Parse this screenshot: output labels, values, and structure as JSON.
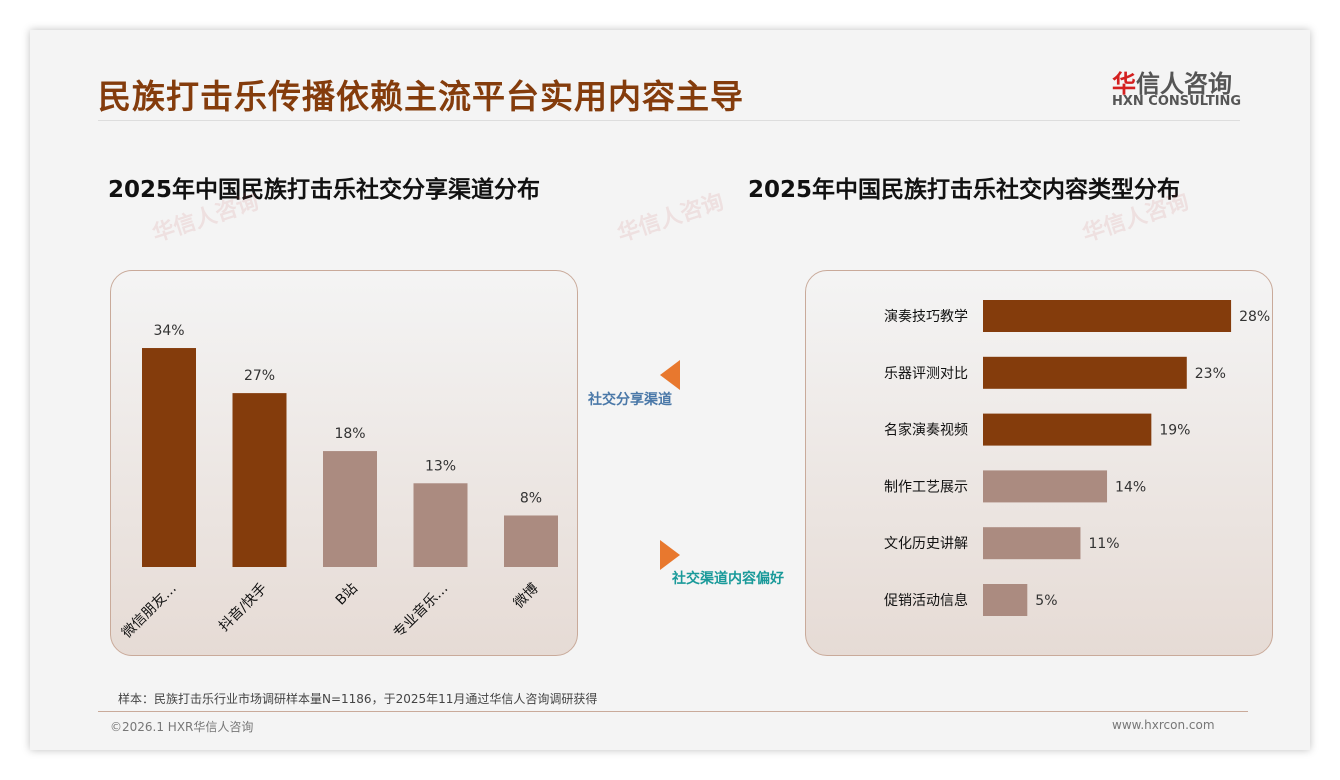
{
  "header": {
    "title": "民族打击乐传播依赖主流平台实用内容主导",
    "logo_cn_accent": "华",
    "logo_cn": "信人咨询",
    "logo_en": "HXN CONSULTING"
  },
  "chart_data": [
    {
      "type": "bar",
      "title": "2025年中国民族打击乐社交分享渠道分布",
      "categories": [
        "微信朋友…",
        "抖音/快手",
        "B站",
        "专业音乐…",
        "微博"
      ],
      "values": [
        34,
        27,
        18,
        13,
        8
      ],
      "unit": "%",
      "highlight": [
        true,
        true,
        false,
        false,
        false
      ]
    },
    {
      "type": "bar",
      "orientation": "horizontal",
      "title": "2025年中国民族打击乐社交内容类型分布",
      "categories": [
        "演奏技巧教学",
        "乐器评测对比",
        "名家演奏视频",
        "制作工艺展示",
        "文化历史讲解",
        "促销活动信息"
      ],
      "values": [
        28,
        23,
        19,
        14,
        11,
        5
      ],
      "unit": "%",
      "highlight": [
        true,
        true,
        true,
        false,
        false,
        false
      ]
    }
  ],
  "middle": {
    "label_left": "社交分享渠道",
    "label_right": "社交渠道内容偏好"
  },
  "colors": {
    "dark": "#843c0c",
    "light": "#ab8b80",
    "accent": "#e8782e"
  },
  "footer": {
    "note": "样本：民族打击乐行业市场调研样本量N=1186，于2025年11月通过华信人咨询调研获得",
    "copyright": "©2026.1 HXR华信人咨询",
    "website": "www.hxrcon.com"
  }
}
